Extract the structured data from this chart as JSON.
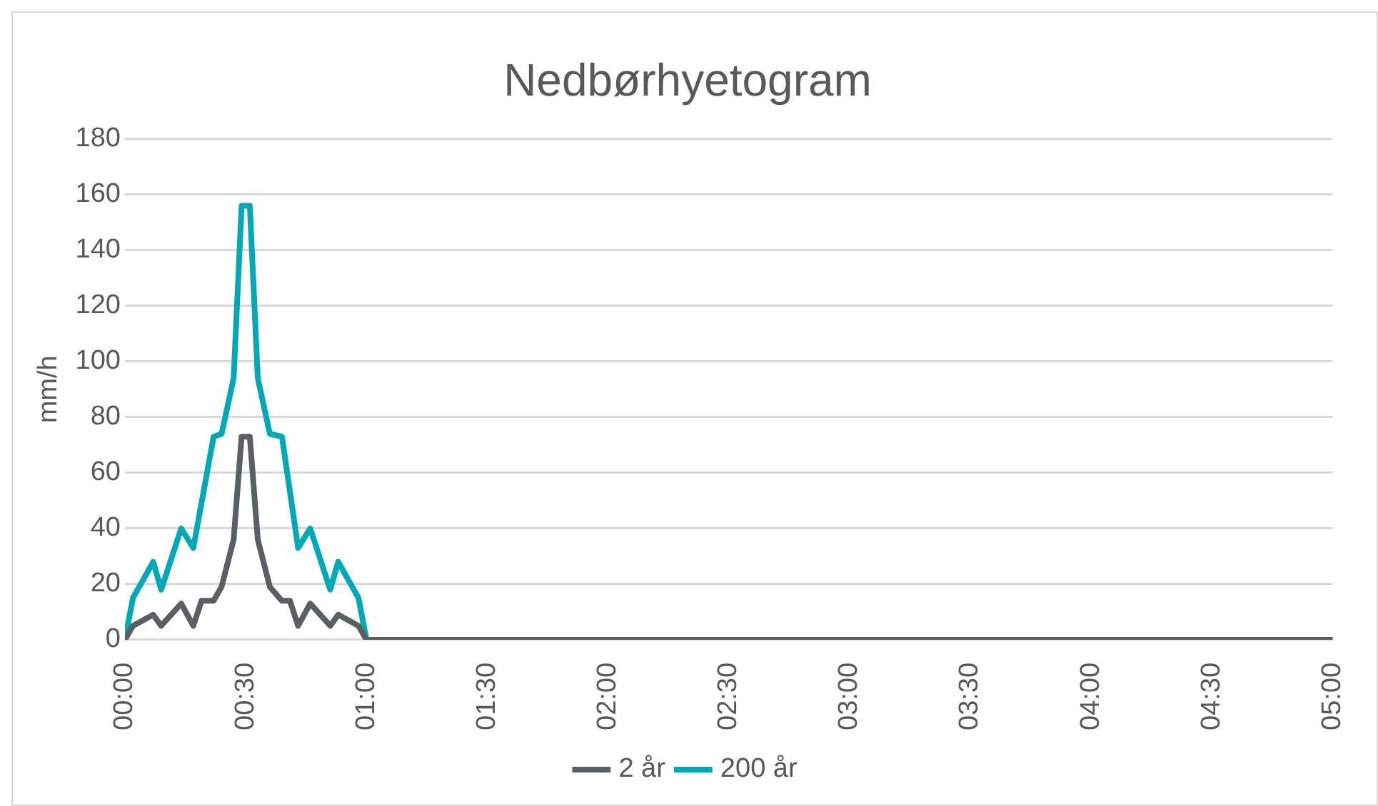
{
  "chart_data": {
    "type": "line",
    "title": "Nedbørhyetogram",
    "ylabel": "mm/h",
    "xlim": [
      0,
      5
    ],
    "xticks": [
      {
        "value": 0,
        "label": "00:00"
      },
      {
        "value": 0.5,
        "label": "00:30"
      },
      {
        "value": 1,
        "label": "01:00"
      },
      {
        "value": 1.5,
        "label": "01:30"
      },
      {
        "value": 2,
        "label": "02:00"
      },
      {
        "value": 2.5,
        "label": "02:30"
      },
      {
        "value": 3,
        "label": "03:00"
      },
      {
        "value": 3.5,
        "label": "03:30"
      },
      {
        "value": 4,
        "label": "04:00"
      },
      {
        "value": 4.5,
        "label": "04:30"
      },
      {
        "value": 5,
        "label": "05:00"
      }
    ],
    "ylim": [
      0,
      180
    ],
    "yticks": [
      0,
      20,
      40,
      60,
      80,
      100,
      120,
      140,
      160,
      180
    ],
    "grid": "y",
    "legend": "bottom",
    "marker": "none",
    "line_style": "solid",
    "series": [
      {
        "name": "2 år",
        "color": "#5a5f63",
        "x": [
          0,
          0.033,
          0.117,
          0.15,
          0.233,
          0.283,
          0.317,
          0.367,
          0.4,
          0.45,
          0.483,
          0.517,
          0.55,
          0.6,
          0.65,
          0.683,
          0.717,
          0.767,
          0.85,
          0.883,
          0.967,
          1,
          5
        ],
        "values": [
          0,
          5,
          9,
          5,
          13,
          5,
          14,
          14,
          19,
          36,
          73,
          73,
          36,
          19,
          14,
          14,
          5,
          13,
          5,
          9,
          5,
          0,
          0
        ]
      },
      {
        "name": "200 år",
        "color": "#00a9b8",
        "x": [
          0,
          0.033,
          0.117,
          0.15,
          0.233,
          0.283,
          0.367,
          0.4,
          0.45,
          0.483,
          0.517,
          0.55,
          0.6,
          0.65,
          0.717,
          0.767,
          0.85,
          0.883,
          0.967,
          1,
          5
        ],
        "values": [
          0,
          15,
          28,
          18,
          40,
          33,
          73,
          74,
          94,
          156,
          156,
          94,
          74,
          73,
          33,
          40,
          18,
          28,
          15,
          0,
          0
        ]
      }
    ]
  }
}
